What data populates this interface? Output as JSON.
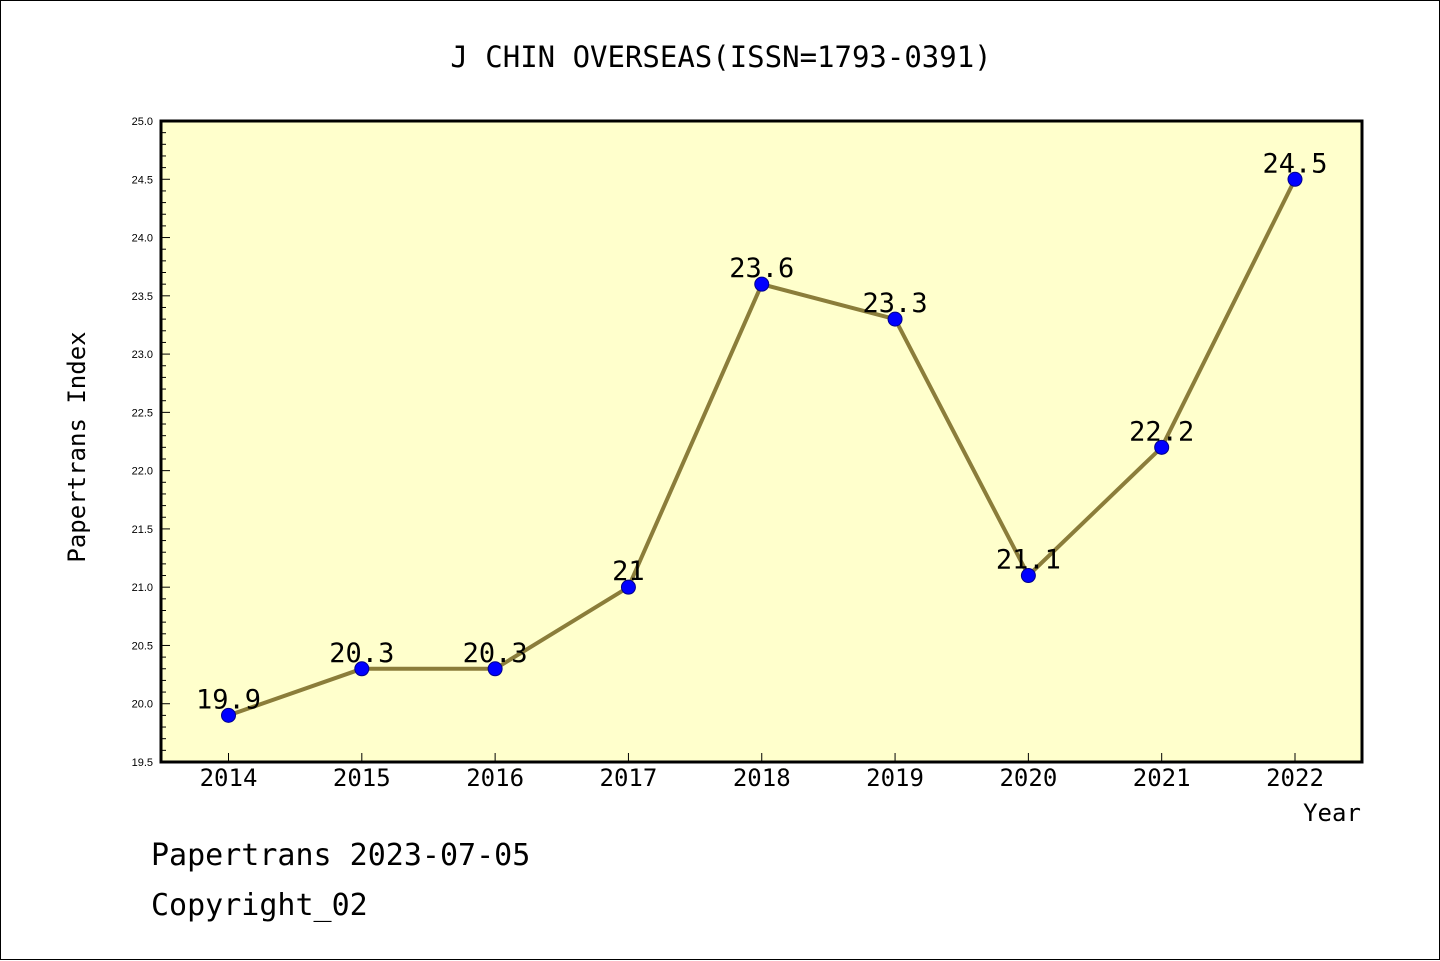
{
  "chart_data": {
    "type": "line",
    "title": "J CHIN OVERSEAS(ISSN=1793-0391)",
    "xlabel": "Year",
    "ylabel": "Papertrans Index",
    "categories": [
      "2014",
      "2015",
      "2016",
      "2017",
      "2018",
      "2019",
      "2020",
      "2021",
      "2022"
    ],
    "values": [
      19.9,
      20.3,
      20.3,
      21,
      23.6,
      23.3,
      21.1,
      22.2,
      24.5
    ],
    "data_labels": [
      "19.9",
      "20.3",
      "20.3",
      "21",
      "23.6",
      "23.3",
      "21.1",
      "22.2",
      "24.5"
    ],
    "ylim": [
      19.5,
      25.0
    ],
    "yticks": [
      "19.5",
      "20.0",
      "20.5",
      "21.0",
      "21.5",
      "22.0",
      "22.5",
      "23.0",
      "23.5",
      "24.0",
      "24.5",
      "25.0"
    ],
    "grid": false,
    "colors": {
      "plot_background": "#ffffcc",
      "line": "#8b7d3a",
      "marker": "#0000ff"
    }
  },
  "footer": {
    "line1": "Papertrans 2023-07-05",
    "line2": "Copyright_02"
  }
}
